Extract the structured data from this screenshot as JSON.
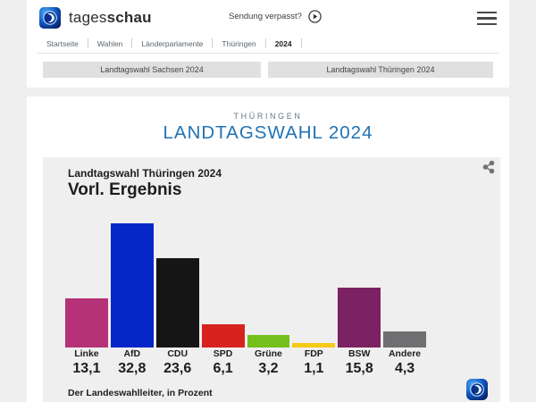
{
  "header": {
    "brand_light": "tages",
    "brand_bold": "schau",
    "missed_show_label": "Sendung verpasst?"
  },
  "breadcrumb": {
    "items": [
      "Startseite",
      "Wahlen",
      "Länderparlamente",
      "Thüringen",
      "2024"
    ],
    "current": "2024"
  },
  "nav_buttons": [
    {
      "label": "Landtagswahl Sachsen 2024"
    },
    {
      "label": "Landtagswahl Thüringen 2024"
    }
  ],
  "main": {
    "kicker": "THÜRINGEN",
    "title": "LANDTAGSWAHL 2024"
  },
  "chart_data": {
    "type": "bar",
    "title": "Landtagswahl Thüringen 2024",
    "subtitle": "Vorl. Ergebnis",
    "categories": [
      "Linke",
      "AfD",
      "CDU",
      "SPD",
      "Grüne",
      "FDP",
      "BSW",
      "Andere"
    ],
    "values": [
      13.1,
      32.8,
      23.6,
      6.1,
      3.2,
      1.1,
      15.8,
      4.3
    ],
    "value_labels": [
      "13,1",
      "32,8",
      "23,6",
      "6,1",
      "3,2",
      "1,1",
      "15,8",
      "4,3"
    ],
    "colors": [
      "#b53278",
      "#0627c8",
      "#151515",
      "#d6231e",
      "#74bf1c",
      "#f6c914",
      "#7c2161",
      "#6f6f71"
    ],
    "source": "Der Landeswahlleiter, in Prozent",
    "unit": "Prozent",
    "ylim": [
      0,
      35
    ],
    "legend": "none",
    "grid": false
  },
  "colors": {
    "accent_blue": "#2173b5",
    "page_background": "#efefef",
    "panel_background": "#efefef",
    "button_background": "#e0e0e0"
  },
  "icons": {
    "logo": "tagesschau-globe",
    "play": "play-circle",
    "menu": "hamburger",
    "share": "share-nodes"
  }
}
